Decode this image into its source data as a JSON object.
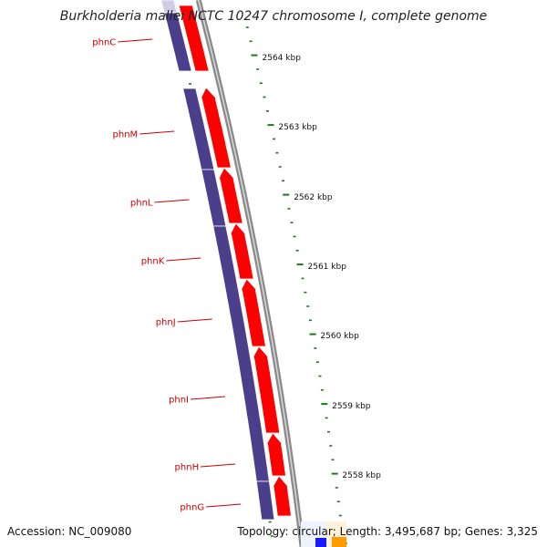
{
  "title": "Burkholderia mallei NCTC 10247 chromosome I, complete genome",
  "footer": {
    "accession": "Accession: NC_009080",
    "summary": "Topology: circular; Length: 3,495,687 bp; Genes: 3,325"
  },
  "colors": {
    "feature_red": "#ff0000",
    "feature_blue": "#4b3f8c",
    "feature_blue_faded": "#cfcce3",
    "tick_green": "#1a7a1a",
    "backbone": "#8a8a8a",
    "gene_label": "#cc0000",
    "bottom_blue": "#1a1aff",
    "bottom_orange": "#ff9a00"
  },
  "scale_labels": [
    "2564 kbp",
    "2563 kbp",
    "2562 kbp",
    "2561 kbp",
    "2560 kbp",
    "2559 kbp",
    "2558 kbp"
  ],
  "genes": [
    "phnC",
    "phnM",
    "phnL",
    "phnK",
    "phnJ",
    "phnI",
    "phnH",
    "phnG"
  ]
}
